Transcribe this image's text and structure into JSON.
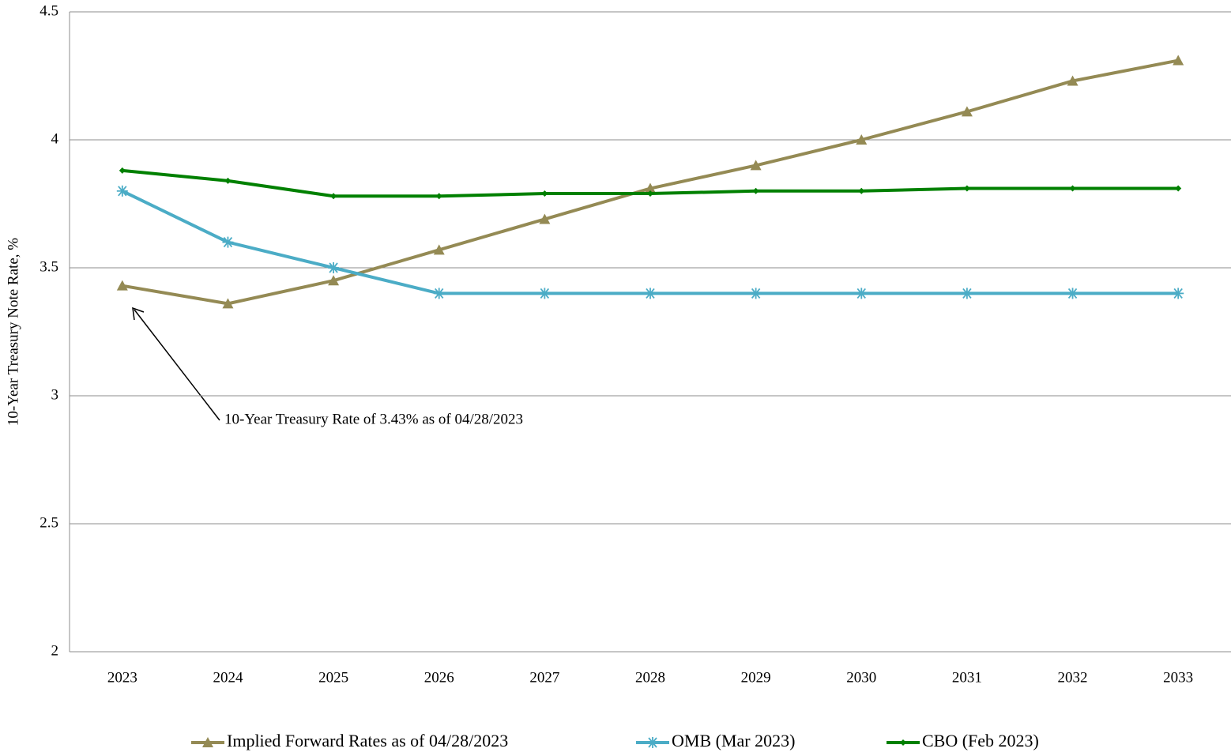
{
  "chart_data": {
    "type": "line",
    "y_label": "10-Year Treasury Note Rate, %",
    "categories": [
      "2023",
      "2024",
      "2025",
      "2026",
      "2027",
      "2028",
      "2029",
      "2030",
      "2031",
      "2032",
      "2033"
    ],
    "series": [
      {
        "name": "Implied Forward Rates as of 04/28/2023",
        "color": "#948a54",
        "marker": "triangle",
        "values": [
          3.43,
          3.36,
          3.45,
          3.57,
          3.69,
          3.81,
          3.9,
          4.0,
          4.11,
          4.23,
          4.31
        ]
      },
      {
        "name": "OMB (Mar 2023)",
        "color": "#4bacc6",
        "marker": "asterisk",
        "values": [
          3.8,
          3.6,
          3.5,
          3.4,
          3.4,
          3.4,
          3.4,
          3.4,
          3.4,
          3.4,
          3.4
        ]
      },
      {
        "name": "CBO (Feb 2023)",
        "color": "#008000",
        "marker": "diamond",
        "values": [
          3.88,
          3.84,
          3.78,
          3.78,
          3.79,
          3.79,
          3.8,
          3.8,
          3.81,
          3.81,
          3.81
        ]
      }
    ],
    "ylim": [
      2,
      4.5
    ],
    "yticks": [
      2,
      2.5,
      3,
      3.5,
      4,
      4.5
    ],
    "grid": true,
    "legend": "bottom",
    "annotation": "10-Year Treasury Rate of 3.43% as of 04/28/2023"
  }
}
